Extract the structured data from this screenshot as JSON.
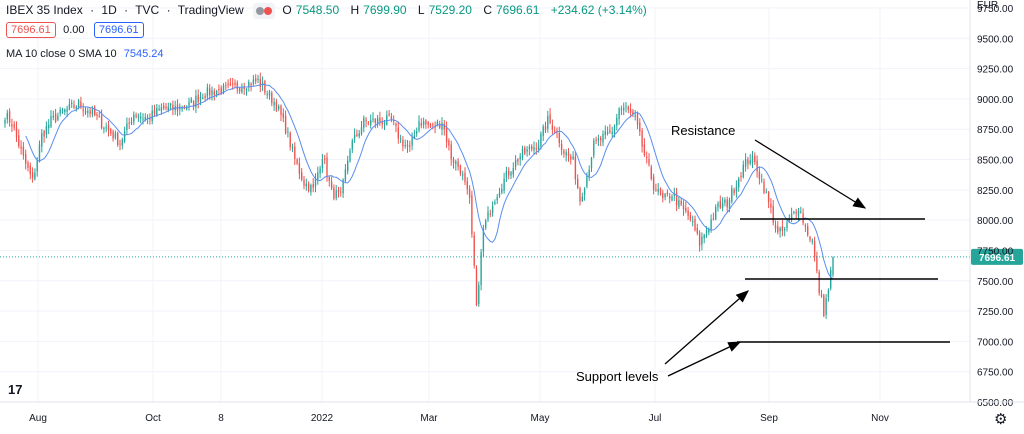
{
  "header": {
    "symbol": "IBEX 35 Index",
    "interval": "1D",
    "exchange": "TVC",
    "source": "TradingView",
    "separator": "·",
    "ohlc": [
      {
        "label": "O",
        "value": "7548.50"
      },
      {
        "label": "H",
        "value": "7699.90"
      },
      {
        "label": "L",
        "value": "7529.20"
      },
      {
        "label": "C",
        "value": "7696.61"
      }
    ],
    "change": "+234.62 (+3.14%)",
    "sell_price": "7696.61",
    "spread": "0.00",
    "buy_price": "7696.61",
    "ma_label": "MA 10 close 0 SMA 10",
    "ma_value": "7545.24"
  },
  "colors": {
    "up": "#26a69a",
    "down": "#ef5350",
    "ma": "#5b8def",
    "last_price": "#26a69a",
    "sell": "#ef5350",
    "buy": "#2962ff"
  },
  "chart_data": {
    "type": "candlestick",
    "currency": "EUR",
    "ylim": [
      6500,
      9750
    ],
    "y_ticks": [
      "9750.00",
      "9500.00",
      "9250.00",
      "9000.00",
      "8750.00",
      "8500.00",
      "8250.00",
      "8000.00",
      "7750.00",
      "7500.00",
      "7250.00",
      "7000.00",
      "6750.00",
      "6500.00"
    ],
    "x_ticks": [
      "Aug",
      "Oct",
      "8",
      "2022",
      "Mar",
      "May",
      "Jul",
      "Sep",
      "Nov"
    ],
    "last_price": 7696.61,
    "last_price_label": "7696.61",
    "anchors": [
      [
        0,
        8870
      ],
      [
        3,
        8800
      ],
      [
        8,
        8510
      ],
      [
        12,
        8320
      ],
      [
        16,
        8700
      ],
      [
        20,
        8820
      ],
      [
        26,
        8900
      ],
      [
        32,
        8960
      ],
      [
        38,
        8880
      ],
      [
        44,
        8760
      ],
      [
        50,
        8640
      ],
      [
        56,
        8880
      ],
      [
        62,
        8840
      ],
      [
        68,
        8920
      ],
      [
        74,
        8920
      ],
      [
        80,
        8950
      ],
      [
        86,
        9040
      ],
      [
        92,
        9070
      ],
      [
        98,
        9080
      ],
      [
        104,
        9120
      ],
      [
        110,
        9150
      ],
      [
        114,
        9050
      ],
      [
        118,
        8950
      ],
      [
        122,
        8760
      ],
      [
        126,
        8500
      ],
      [
        130,
        8310
      ],
      [
        134,
        8250
      ],
      [
        138,
        8540
      ],
      [
        142,
        8230
      ],
      [
        146,
        8190
      ],
      [
        150,
        8600
      ],
      [
        156,
        8810
      ],
      [
        162,
        8820
      ],
      [
        168,
        8820
      ],
      [
        172,
        8660
      ],
      [
        176,
        8580
      ],
      [
        180,
        8820
      ],
      [
        186,
        8760
      ],
      [
        190,
        8820
      ],
      [
        194,
        8520
      ],
      [
        198,
        8420
      ],
      [
        202,
        8150
      ],
      [
        205,
        7300
      ],
      [
        208,
        7920
      ],
      [
        212,
        8150
      ],
      [
        216,
        8300
      ],
      [
        220,
        8430
      ],
      [
        224,
        8530
      ],
      [
        228,
        8580
      ],
      [
        232,
        8640
      ],
      [
        236,
        8820
      ],
      [
        239,
        8760
      ],
      [
        243,
        8570
      ],
      [
        247,
        8480
      ],
      [
        250,
        8170
      ],
      [
        253,
        8370
      ],
      [
        256,
        8620
      ],
      [
        260,
        8680
      ],
      [
        264,
        8720
      ],
      [
        267,
        8920
      ],
      [
        270,
        8920
      ],
      [
        274,
        8830
      ],
      [
        278,
        8540
      ],
      [
        282,
        8290
      ],
      [
        286,
        8160
      ],
      [
        290,
        8220
      ],
      [
        294,
        8100
      ],
      [
        298,
        8010
      ],
      [
        302,
        7810
      ],
      [
        306,
        7960
      ],
      [
        310,
        8110
      ],
      [
        314,
        8140
      ],
      [
        318,
        8310
      ],
      [
        321,
        8440
      ],
      [
        324,
        8520
      ],
      [
        327,
        8430
      ],
      [
        330,
        8270
      ],
      [
        333,
        8080
      ],
      [
        336,
        7880
      ],
      [
        339,
        7920
      ],
      [
        342,
        8030
      ],
      [
        345,
        8120
      ],
      [
        348,
        7940
      ],
      [
        351,
        7820
      ],
      [
        354,
        7420
      ],
      [
        356,
        7250
      ],
      [
        358,
        7430
      ],
      [
        360,
        7696
      ]
    ],
    "ma_period": 10
  },
  "annotations": {
    "resistance_label": "Resistance",
    "support_label": "Support levels",
    "levels": [
      8010,
      7515,
      6995
    ]
  },
  "footer": {
    "logo_text": "17"
  }
}
